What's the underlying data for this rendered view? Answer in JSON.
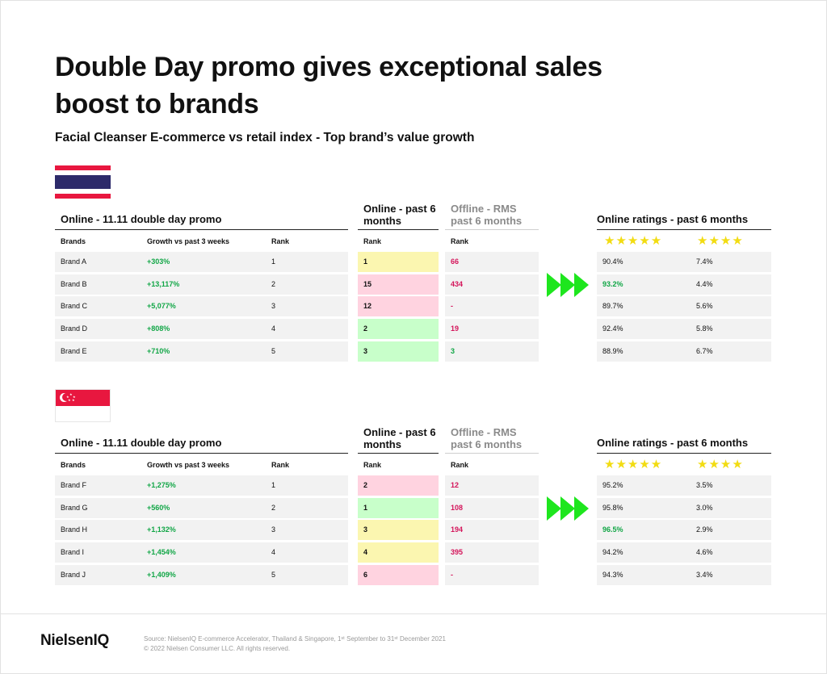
{
  "title": "Double Day promo gives exceptional sales boost to brands",
  "subtitle": "Facial Cleanser E-commerce vs retail index - Top brand’s value growth",
  "colors": {
    "green": "#11a646",
    "red": "#d4145a",
    "yellow_cell": "#fbf6b0",
    "pink_cell": "#ffd3e0",
    "green_cell": "#c8ffca",
    "arrow": "#1ee61e",
    "star": "#f2dc12"
  },
  "headers": {
    "promo": "Online - 11.11 double day promo",
    "online": "Online - past 6 months",
    "offline": "Offline - RMS past 6 months",
    "ratings": "Online ratings - past 6 months",
    "brands": "Brands",
    "growth": "Growth vs past 3 weeks",
    "rank": "Rank",
    "stars5": "★★★★★",
    "stars4": "★★★★"
  },
  "thailand": {
    "flag_icon": "thailand-flag-icon",
    "rows": [
      {
        "brand": "Brand A",
        "growth": "+303%",
        "rank": "1",
        "online": "1",
        "online_color": "yellow",
        "offline": "66",
        "offline_color": "red",
        "r5": "90.4%",
        "r5_hl": false,
        "r4": "7.4%"
      },
      {
        "brand": "Brand B",
        "growth": "+13,117%",
        "rank": "2",
        "online": "15",
        "online_color": "pink",
        "offline": "434",
        "offline_color": "red",
        "r5": "93.2%",
        "r5_hl": true,
        "r4": "4.4%"
      },
      {
        "brand": "Brand C",
        "growth": "+5,077%",
        "rank": "3",
        "online": "12",
        "online_color": "pink",
        "offline": "-",
        "offline_color": "red",
        "r5": "89.7%",
        "r5_hl": false,
        "r4": "5.6%"
      },
      {
        "brand": "Brand D",
        "growth": "+808%",
        "rank": "4",
        "online": "2",
        "online_color": "green",
        "offline": "19",
        "offline_color": "red",
        "r5": "92.4%",
        "r5_hl": false,
        "r4": "5.8%"
      },
      {
        "brand": "Brand E",
        "growth": "+710%",
        "rank": "5",
        "online": "3",
        "online_color": "green",
        "offline": "3",
        "offline_color": "green",
        "r5": "88.9%",
        "r5_hl": false,
        "r4": "6.7%"
      }
    ]
  },
  "singapore": {
    "flag_icon": "singapore-flag-icon",
    "rows": [
      {
        "brand": "Brand F",
        "growth": "+1,275%",
        "rank": "1",
        "online": "2",
        "online_color": "pink",
        "offline": "12",
        "offline_color": "red",
        "r5": "95.2%",
        "r5_hl": false,
        "r4": "3.5%"
      },
      {
        "brand": "Brand G",
        "growth": "+560%",
        "rank": "2",
        "online": "1",
        "online_color": "green",
        "offline": "108",
        "offline_color": "red",
        "r5": "95.8%",
        "r5_hl": false,
        "r4": "3.0%"
      },
      {
        "brand": "Brand H",
        "growth": "+1,132%",
        "rank": "3",
        "online": "3",
        "online_color": "yellow",
        "offline": "194",
        "offline_color": "red",
        "r5": "96.5%",
        "r5_hl": true,
        "r4": "2.9%"
      },
      {
        "brand": "Brand I",
        "growth": "+1,454%",
        "rank": "4",
        "online": "4",
        "online_color": "yellow",
        "offline": "395",
        "offline_color": "red",
        "r5": "94.2%",
        "r5_hl": false,
        "r4": "4.6%"
      },
      {
        "brand": "Brand J",
        "growth": "+1,409%",
        "rank": "5",
        "online": "6",
        "online_color": "pink",
        "offline": "-",
        "offline_color": "red",
        "r5": "94.3%",
        "r5_hl": false,
        "r4": "3.4%"
      }
    ]
  },
  "footer": {
    "logo": "NielsenIQ",
    "source_line1": "Source: NielsenIQ E-commerce Accelerator, Thailand & Singapore, 1ˢᵗ September to 31ˢᵗ December 2021",
    "source_line2": "© 2022 Nielsen Consumer LLC. All rights reserved."
  }
}
